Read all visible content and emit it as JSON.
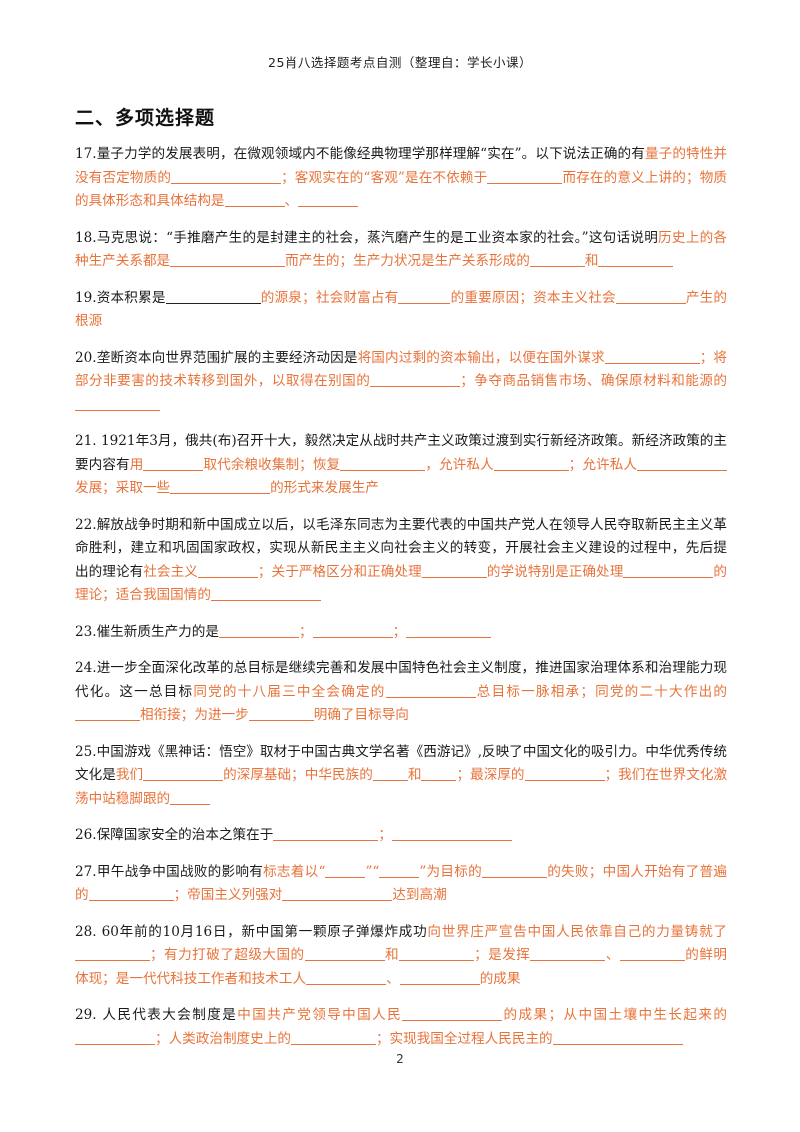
{
  "header": {
    "title": "25肖八选择题考点自测（整理自：学长小课）"
  },
  "section": {
    "title": "二、多项选择题"
  },
  "page_number": "2",
  "questions": [
    {
      "id": "q17",
      "parts": [
        {
          "t": "17.量子力学的发展表明，在微观领域内不能像经典物理学那样理解“实在”。以下说法正确的有"
        },
        {
          "o": "量子的特性并没有否定物质的"
        },
        {
          "bo": 110
        },
        {
          "o": "；客观实在的“客观”是在不依赖于"
        },
        {
          "bo": 75
        },
        {
          "o": "而存在的意义上讲的；物质的具体形态和具体结构是"
        },
        {
          "bo": 60
        },
        {
          "o": "、"
        },
        {
          "bo": 60
        }
      ]
    },
    {
      "id": "q18",
      "parts": [
        {
          "t": "18.马克思说：“手推磨产生的是封建主的社会，蒸汽磨产生的是工业资本家的社会。”这句话说明"
        },
        {
          "o": "历史上的各种生产关系都是"
        },
        {
          "bo": 115
        },
        {
          "o": "而产生的；生产力状况是生产关系形成的"
        },
        {
          "bo": 55
        },
        {
          "o": "和"
        },
        {
          "bo": 75
        }
      ]
    },
    {
      "id": "q19",
      "parts": [
        {
          "t": "19.资本积累是"
        },
        {
          "b": 95
        },
        {
          "o": "的源泉；社会财富占有"
        },
        {
          "bo": 52
        },
        {
          "o": "的重要原因；资本主义社会"
        },
        {
          "bo": 70
        },
        {
          "o": "产生的根源"
        }
      ]
    },
    {
      "id": "q20",
      "parts": [
        {
          "t": "20.垄断资本向世界范围扩展的主要经济动因是"
        },
        {
          "o": "将国内过剩的资本输出，以便在国外谋求"
        },
        {
          "bo": 95
        },
        {
          "o": "；将部分非要害的技术转移到国外，以取得在别国的"
        },
        {
          "bo": 90
        },
        {
          "o": "；争夺商品销售市场、确保原材料和能源的"
        },
        {
          "bo": 85
        }
      ]
    },
    {
      "id": "q21",
      "parts": [
        {
          "t": "21. 1921年3月，俄共(布)召开十大，毅然决定从战时共产主义政策过渡到实行新经济政策。新经济政策的主要内容有"
        },
        {
          "o": "用"
        },
        {
          "bo": 60
        },
        {
          "o": "取代余粮收集制；恢复"
        },
        {
          "bo": 85
        },
        {
          "o": "，允许私人"
        },
        {
          "bo": 75
        },
        {
          "o": "；允许私人"
        },
        {
          "bo": 90
        },
        {
          "o": "发展；采取一些"
        },
        {
          "bo": 100
        },
        {
          "o": "的形式来发展生产"
        }
      ]
    },
    {
      "id": "q22",
      "parts": [
        {
          "t": "22.解放战争时期和新中国成立以后，以毛泽东同志为主要代表的中国共产党人在领导人民夺取新民主主义革命胜利，建立和巩固国家政权，实现从新民主主义向社会主义的转变，开展社会主义建设的过程中，先后提出的理论有"
        },
        {
          "o": "社会主义"
        },
        {
          "bo": 60
        },
        {
          "o": "；关于严格区分和正确处理"
        },
        {
          "bo": 65
        },
        {
          "o": "的学说特别是正确处理"
        },
        {
          "bo": 90
        },
        {
          "o": "的理论；适合我国国情的"
        },
        {
          "bo": 110
        }
      ]
    },
    {
      "id": "q23",
      "parts": [
        {
          "t": "23.催生新质生产力的是"
        },
        {
          "bo": 80
        },
        {
          "o": "；"
        },
        {
          "bo": 80
        },
        {
          "o": "；"
        },
        {
          "bo": 85
        }
      ]
    },
    {
      "id": "q24",
      "parts": [
        {
          "t": "24.进一步全面深化改革的总目标是继续完善和发展中国特色社会主义制度，推进国家治理体系和治理能力现代化。这一总目标"
        },
        {
          "o": "同党的十八届三中全会确定的"
        },
        {
          "bo": 90
        },
        {
          "o": "总目标一脉相承；同党的二十大作出的"
        },
        {
          "bo": 65
        },
        {
          "o": "相衔接；为进一步"
        },
        {
          "bo": 65
        },
        {
          "o": "明确了目标导向"
        }
      ]
    },
    {
      "id": "q25",
      "parts": [
        {
          "t": "25.中国游戏《黑神话：悟空》取材于中国古典文学名著《西游记》,反映了中国文化的吸引力。中华优秀传统文化是"
        },
        {
          "o": "我们"
        },
        {
          "bo": 80
        },
        {
          "o": "的深厚基础；中华民族的"
        },
        {
          "bo": 35
        },
        {
          "o": "和"
        },
        {
          "bo": 35
        },
        {
          "o": "；最深厚的"
        },
        {
          "bo": 80
        },
        {
          "o": "；我们在世界文化激荡中站稳脚跟的"
        },
        {
          "bo": 40
        }
      ]
    },
    {
      "id": "q26",
      "parts": [
        {
          "t": "26.保障国家安全的治本之策在于"
        },
        {
          "bo": 105
        },
        {
          "o": "；"
        },
        {
          "bo": 120
        }
      ]
    },
    {
      "id": "q27",
      "parts": [
        {
          "t": "27.甲午战争中国战败的影响有"
        },
        {
          "o": "标志着以“"
        },
        {
          "bo": 40
        },
        {
          "o": "”“"
        },
        {
          "bo": 40
        },
        {
          "o": "”为目标的"
        },
        {
          "bo": 65
        },
        {
          "o": "的失败；中国人开始有了普遍的"
        },
        {
          "bo": 85
        },
        {
          "o": "；帝国主义列强对"
        },
        {
          "bo": 110
        },
        {
          "o": "达到高潮"
        }
      ]
    },
    {
      "id": "q28",
      "parts": [
        {
          "t": "28. 60年前的10月16日，新中国第一颗原子弹爆炸成功"
        },
        {
          "o": "向世界庄严宣告中国人民依靠自己的力量铸就了"
        },
        {
          "bo": 75
        },
        {
          "o": "；有力打破了超级大国的"
        },
        {
          "bo": 80
        },
        {
          "o": "和"
        },
        {
          "bo": 75
        },
        {
          "o": "；是发挥"
        },
        {
          "bo": 75
        },
        {
          "o": "、"
        },
        {
          "bo": 65
        },
        {
          "o": "的鲜明体现；是一代代科技工作者和技术工人"
        },
        {
          "bo": 80
        },
        {
          "o": "、"
        },
        {
          "bo": 80
        },
        {
          "o": "的成果"
        }
      ]
    },
    {
      "id": "q29",
      "parts": [
        {
          "t": "29. 人民代表大会制度是"
        },
        {
          "o": "中国共产党领导中国人民"
        },
        {
          "bo": 100
        },
        {
          "o": "的成果；从中国土壤中生长起来的"
        },
        {
          "bo": 80
        },
        {
          "o": "；人类政治制度史上的"
        },
        {
          "bo": 85
        },
        {
          "o": "；实现我国全过程人民民主的"
        },
        {
          "bo": 130
        }
      ]
    }
  ]
}
